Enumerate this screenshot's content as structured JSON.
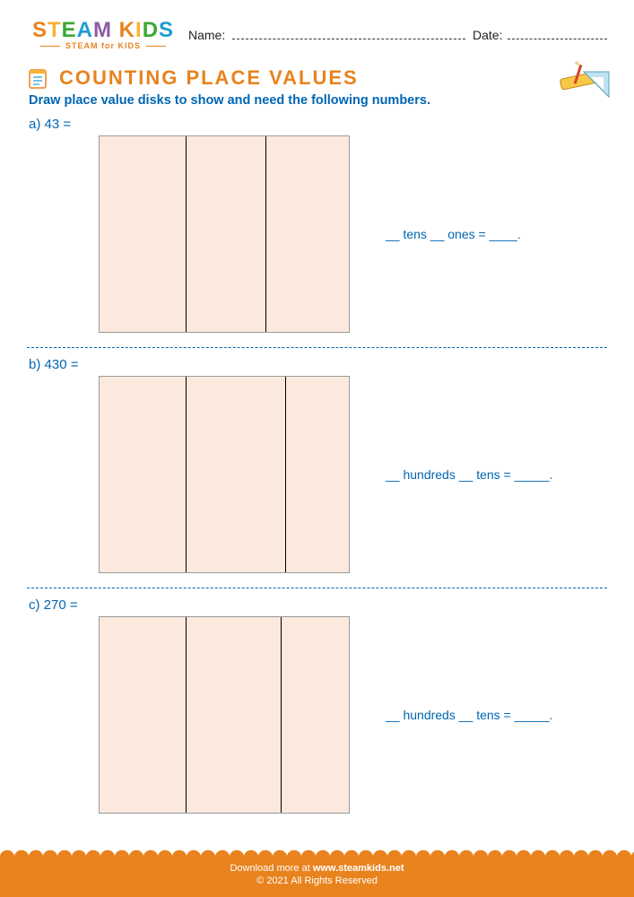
{
  "logo": {
    "letters": [
      "S",
      "T",
      "E",
      "A",
      "M",
      " ",
      "K",
      "I",
      "D",
      "S"
    ],
    "sub": "STEAM for KIDS"
  },
  "header": {
    "name_label": "Name:",
    "date_label": "Date:"
  },
  "title": "COUNTING PLACE VALUES",
  "instruction": "Draw place value disks to show and need the following numbers.",
  "problems": [
    {
      "label": "a)  43  =",
      "columns": [
        35,
        32,
        33
      ],
      "answer": "__ tens __ ones = ____."
    },
    {
      "label": "b)  430  =",
      "columns": [
        35,
        40,
        25
      ],
      "answer": "__ hundreds __ tens = _____."
    },
    {
      "label": "c)  270  =",
      "columns": [
        35,
        38,
        27
      ],
      "answer": "__ hundreds __ tens = _____."
    }
  ],
  "footer": {
    "line1_pre": "Download more at ",
    "link": "www.steamkids.net",
    "line2": "© 2021 All Rights Reserved"
  },
  "colors": {
    "accent": "#e8831e",
    "blue": "#0066b3",
    "box_fill": "#fbe9dd",
    "box_border": "#9a9a9a",
    "divider": "#000000"
  }
}
